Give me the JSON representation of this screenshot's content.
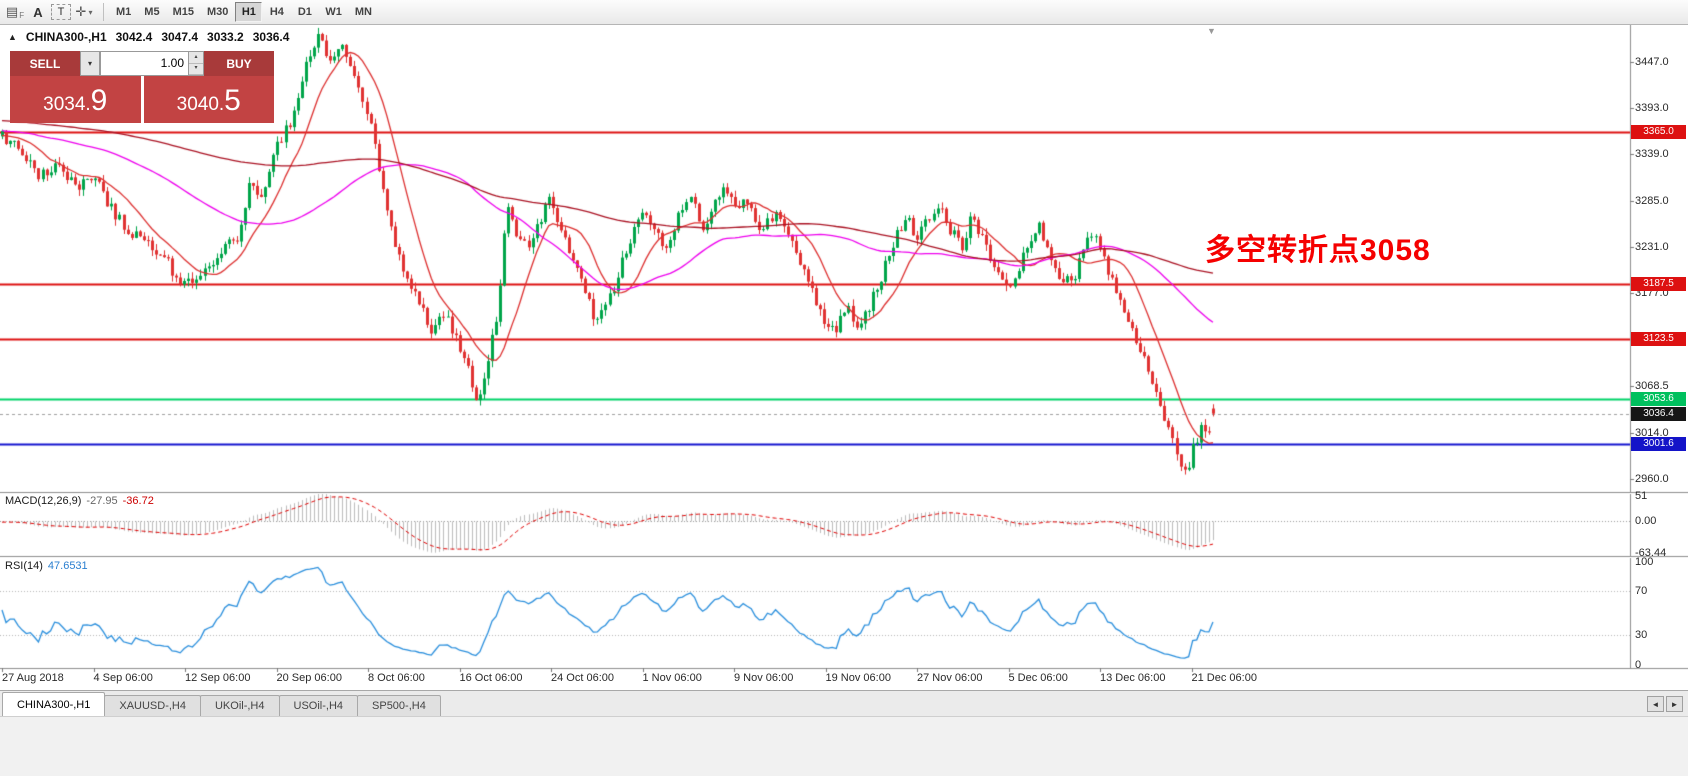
{
  "toolbar": {
    "icons": [
      {
        "name": "quotes-grid-icon",
        "glyph": "▤",
        "sub": "F"
      },
      {
        "name": "arrow-label-icon",
        "glyph": "A"
      },
      {
        "name": "text-tool-icon",
        "glyph": "T"
      },
      {
        "name": "crosshair-tool-icon",
        "glyph": "✛"
      },
      {
        "name": "chevron-down-icon",
        "glyph": "▾"
      }
    ],
    "timeframes": [
      "M1",
      "M5",
      "M15",
      "M30",
      "H1",
      "H4",
      "D1",
      "W1",
      "MN"
    ],
    "active_timeframe": "H1"
  },
  "symbol_info": {
    "marker": "▲",
    "symbol": "CHINA300-,H1",
    "open": "3042.4",
    "high": "3047.4",
    "low": "3033.2",
    "close": "3036.4"
  },
  "trade_panel": {
    "sell_label": "SELL",
    "buy_label": "BUY",
    "volume": "1.00",
    "sell_price_small": "3034.",
    "sell_price_big": "9",
    "buy_price_small": "3040.",
    "buy_price_big": "5"
  },
  "annotation": {
    "text": "多空转折点3058",
    "color": "#f50000"
  },
  "price_axis": {
    "labels": [
      "3447.0",
      "3393.0",
      "3339.0",
      "3285.0",
      "3231.0",
      "3177.0",
      "3068.5",
      "3014.0",
      "2960.0"
    ],
    "badges": [
      {
        "label": "3365.0",
        "value": 3365.0,
        "color": "#dd1111"
      },
      {
        "label": "3187.5",
        "value": 3187.5,
        "color": "#dd1111"
      },
      {
        "label": "3123.5",
        "value": 3123.5,
        "color": "#dd1111"
      },
      {
        "label": "3053.6",
        "value": 3053.6,
        "color": "#00c05e"
      },
      {
        "label": "3036.4",
        "value": 3036.4,
        "color": "#161616"
      },
      {
        "label": "3001.6",
        "value": 3001.6,
        "color": "#1414c8"
      }
    ]
  },
  "macd_panel": {
    "name": "MACD(12,26,9)",
    "value": "-27.95",
    "signal_value": "-36.72",
    "axis_labels": [
      "51",
      "0.00",
      "-63.44"
    ]
  },
  "rsi_panel": {
    "name": "RSI(14)",
    "value": "47.6531",
    "axis_labels": [
      "100",
      "70",
      "30",
      "0"
    ],
    "levels": [
      70,
      30
    ]
  },
  "time_axis": {
    "labels": [
      "27 Aug 2018",
      "4 Sep 06:00",
      "12 Sep 06:00",
      "20 Sep 06:00",
      "8 Oct 06:00",
      "16 Oct 06:00",
      "24 Oct 06:00",
      "1 Nov 06:00",
      "9 Nov 06:00",
      "19 Nov 06:00",
      "27 Nov 06:00",
      "5 Dec 06:00",
      "13 Dec 06:00",
      "21 Dec 06:00"
    ]
  },
  "tabs": [
    {
      "label": "CHINA300-,H1",
      "active": true
    },
    {
      "label": "XAUUSD-,H4",
      "active": false
    },
    {
      "label": "UKOil-,H4",
      "active": false
    },
    {
      "label": "USOil-,H4",
      "active": false
    },
    {
      "label": "SP500-,H4",
      "active": false
    }
  ],
  "tab_scroll": {
    "left": "◄",
    "right": "►"
  },
  "chart_data": {
    "type": "candlestick",
    "symbol": "CHINA300-",
    "timeframe": "H1",
    "current": {
      "open": 3042.4,
      "high": 3047.4,
      "low": 3033.2,
      "close": 3036.4,
      "bid": 3034.9,
      "ask": 3040.5
    },
    "y_axis_range": [
      2945,
      3490
    ],
    "up_color": "#00a54a",
    "down_color": "#e03232",
    "horizontal_levels": [
      {
        "price": 3365.0,
        "color": "#dd1111",
        "style": "solid"
      },
      {
        "price": 3187.5,
        "color": "#dd1111",
        "style": "solid"
      },
      {
        "price": 3123.5,
        "color": "#dd1111",
        "style": "solid"
      },
      {
        "price": 3053.6,
        "color": "#00d468",
        "style": "solid"
      },
      {
        "price": 3001.6,
        "color": "#1414d0",
        "style": "solid"
      },
      {
        "price": 3036.4,
        "color": "#a0a0a0",
        "style": "dashed"
      }
    ],
    "moving_averages": [
      {
        "period": 12,
        "color": "#dd3030"
      },
      {
        "period": 55,
        "color": "#ee00ee"
      },
      {
        "period": 150,
        "color": "#aa1122"
      }
    ],
    "macd": {
      "periods": [
        12,
        26,
        9
      ],
      "last": -27.95,
      "signal_last": -36.72,
      "range": [
        -63.44,
        51
      ]
    },
    "rsi": {
      "period": 14,
      "last": 47.6531,
      "levels": [
        70,
        30
      ]
    },
    "price_path": [
      [
        0,
        3360
      ],
      [
        0.015,
        3345
      ],
      [
        0.03,
        3310
      ],
      [
        0.045,
        3330
      ],
      [
        0.06,
        3300
      ],
      [
        0.075,
        3315
      ],
      [
        0.09,
        3275
      ],
      [
        0.105,
        3250
      ],
      [
        0.12,
        3235
      ],
      [
        0.135,
        3215
      ],
      [
        0.15,
        3185
      ],
      [
        0.165,
        3195
      ],
      [
        0.18,
        3225
      ],
      [
        0.195,
        3245
      ],
      [
        0.205,
        3310
      ],
      [
        0.215,
        3285
      ],
      [
        0.225,
        3340
      ],
      [
        0.24,
        3385
      ],
      [
        0.25,
        3445
      ],
      [
        0.262,
        3480
      ],
      [
        0.272,
        3445
      ],
      [
        0.282,
        3465
      ],
      [
        0.292,
        3430
      ],
      [
        0.305,
        3370
      ],
      [
        0.315,
        3290
      ],
      [
        0.325,
        3230
      ],
      [
        0.335,
        3185
      ],
      [
        0.345,
        3165
      ],
      [
        0.355,
        3135
      ],
      [
        0.365,
        3155
      ],
      [
        0.375,
        3120
      ],
      [
        0.385,
        3085
      ],
      [
        0.393,
        3045
      ],
      [
        0.4,
        3090
      ],
      [
        0.41,
        3160
      ],
      [
        0.417,
        3285
      ],
      [
        0.425,
        3245
      ],
      [
        0.435,
        3230
      ],
      [
        0.445,
        3265
      ],
      [
        0.452,
        3290
      ],
      [
        0.462,
        3250
      ],
      [
        0.472,
        3215
      ],
      [
        0.482,
        3175
      ],
      [
        0.49,
        3145
      ],
      [
        0.5,
        3165
      ],
      [
        0.51,
        3205
      ],
      [
        0.52,
        3245
      ],
      [
        0.53,
        3280
      ],
      [
        0.54,
        3250
      ],
      [
        0.55,
        3225
      ],
      [
        0.558,
        3270
      ],
      [
        0.568,
        3290
      ],
      [
        0.578,
        3255
      ],
      [
        0.588,
        3280
      ],
      [
        0.597,
        3305
      ],
      [
        0.607,
        3270
      ],
      [
        0.617,
        3290
      ],
      [
        0.627,
        3245
      ],
      [
        0.637,
        3270
      ],
      [
        0.647,
        3250
      ],
      [
        0.657,
        3220
      ],
      [
        0.667,
        3185
      ],
      [
        0.677,
        3150
      ],
      [
        0.687,
        3130
      ],
      [
        0.697,
        3160
      ],
      [
        0.707,
        3140
      ],
      [
        0.717,
        3165
      ],
      [
        0.727,
        3200
      ],
      [
        0.737,
        3240
      ],
      [
        0.747,
        3270
      ],
      [
        0.755,
        3235
      ],
      [
        0.763,
        3260
      ],
      [
        0.773,
        3280
      ],
      [
        0.783,
        3250
      ],
      [
        0.793,
        3230
      ],
      [
        0.8,
        3265
      ],
      [
        0.81,
        3240
      ],
      [
        0.82,
        3200
      ],
      [
        0.83,
        3180
      ],
      [
        0.84,
        3210
      ],
      [
        0.848,
        3235
      ],
      [
        0.856,
        3255
      ],
      [
        0.865,
        3220
      ],
      [
        0.875,
        3195
      ],
      [
        0.885,
        3190
      ],
      [
        0.893,
        3230
      ],
      [
        0.902,
        3250
      ],
      [
        0.912,
        3205
      ],
      [
        0.922,
        3170
      ],
      [
        0.932,
        3140
      ],
      [
        0.942,
        3105
      ],
      [
        0.952,
        3060
      ],
      [
        0.962,
        3020
      ],
      [
        0.97,
        2990
      ],
      [
        0.978,
        2965
      ],
      [
        0.984,
        3000
      ],
      [
        0.99,
        3020
      ],
      [
        0.995,
        3008
      ],
      [
        1,
        3036.4
      ]
    ]
  }
}
